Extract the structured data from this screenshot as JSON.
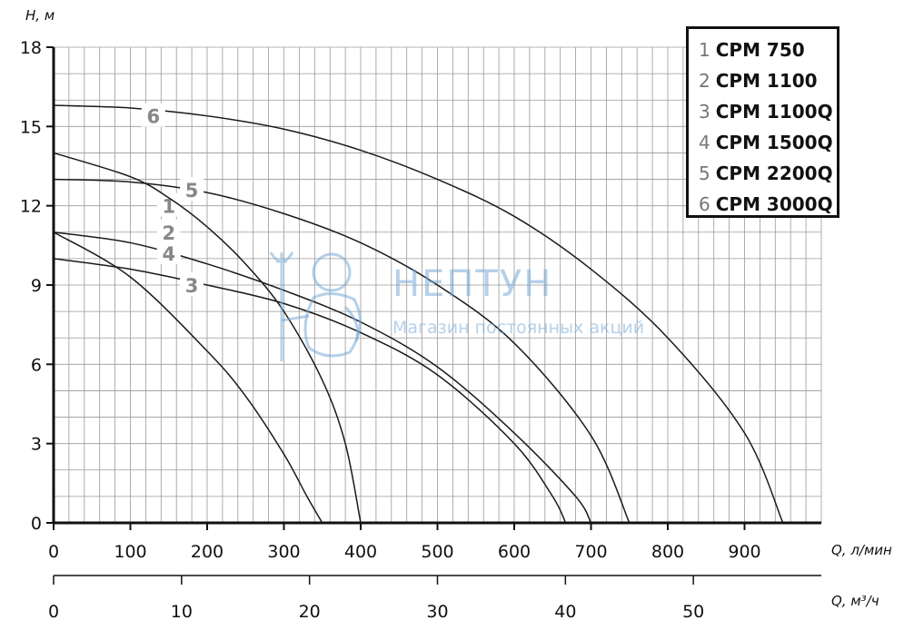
{
  "chart_data": {
    "type": "line",
    "ylabel": "H, м",
    "xlabel": "Q, л/мин",
    "xlabel2": "Q, м³/ч",
    "xlim": [
      0,
      1000
    ],
    "ylim": [
      0,
      18
    ],
    "yticks": [
      "0",
      "3",
      "6",
      "9",
      "12",
      "15",
      "18"
    ],
    "xticks": [
      "0",
      "100",
      "200",
      "300",
      "400",
      "500",
      "600",
      "700",
      "800",
      "900"
    ],
    "xticks2": [
      "0",
      "10",
      "20",
      "30",
      "40",
      "50"
    ],
    "grid": true,
    "legend_position": "top-right",
    "series": [
      {
        "name": "CPM 750",
        "label": "1",
        "x": [
          0,
          100,
          200,
          250,
          300,
          330,
          350
        ],
        "y": [
          11,
          9.3,
          6.5,
          4.8,
          2.6,
          1.0,
          0
        ]
      },
      {
        "name": "CPM 1100",
        "label": "2",
        "x": [
          0,
          100,
          150,
          200,
          250,
          300,
          350,
          380,
          400
        ],
        "y": [
          14,
          13.1,
          12.3,
          11.2,
          9.8,
          8.0,
          5.4,
          3.0,
          0
        ]
      },
      {
        "name": "CPM 1100Q",
        "label": "3",
        "x": [
          0,
          100,
          200,
          300,
          400,
          500,
          600,
          650,
          667
        ],
        "y": [
          10,
          9.6,
          9.0,
          8.3,
          7.2,
          5.6,
          3.0,
          1.0,
          0
        ]
      },
      {
        "name": "CPM 1500Q",
        "label": "4",
        "x": [
          0,
          100,
          200,
          300,
          400,
          500,
          600,
          680,
          700
        ],
        "y": [
          11,
          10.6,
          9.8,
          8.8,
          7.6,
          5.9,
          3.4,
          1.0,
          0
        ]
      },
      {
        "name": "CPM 2200Q",
        "label": "5",
        "x": [
          0,
          100,
          200,
          300,
          400,
          500,
          600,
          700,
          750
        ],
        "y": [
          13,
          12.9,
          12.5,
          11.7,
          10.6,
          9.0,
          6.8,
          3.3,
          0
        ]
      },
      {
        "name": "CPM 3000Q",
        "label": "6",
        "x": [
          0,
          100,
          200,
          300,
          400,
          500,
          600,
          700,
          800,
          900,
          950
        ],
        "y": [
          15.8,
          15.7,
          15.4,
          14.9,
          14.1,
          13.0,
          11.6,
          9.6,
          7.0,
          3.4,
          0
        ]
      }
    ],
    "colors": {
      "curve": "#1a1a1a",
      "grid": "#9a9a9a",
      "axis": "#111111",
      "label": "#888888"
    }
  },
  "legend": [
    {
      "num": "1",
      "name": "CPM 750"
    },
    {
      "num": "2",
      "name": "CPM 1100"
    },
    {
      "num": "3",
      "name": "CPM 1100Q"
    },
    {
      "num": "4",
      "name": "CPM 1500Q"
    },
    {
      "num": "5",
      "name": "CPM 2200Q"
    },
    {
      "num": "6",
      "name": "CPM 3000Q"
    }
  ],
  "watermark": {
    "title": "НЕПТУН",
    "subtitle": "Магазин постоянных акций",
    "icon": "neptune-logo-icon"
  }
}
